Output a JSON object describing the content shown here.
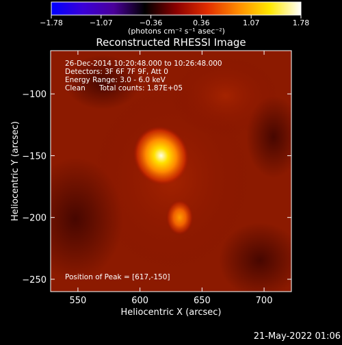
{
  "colorbar": {
    "ticks": [
      "-1.78",
      "-1.07",
      "-0.36",
      "0.36",
      "1.07",
      "1.78"
    ],
    "unit_label": "(photons cm⁻² s⁻¹ asec⁻²)",
    "stops": [
      "#0000ff",
      "#3a00d8",
      "#4a009a",
      "#000000",
      "#8a0000",
      "#e12d00",
      "#ff8c00",
      "#ffe800",
      "#ffffff"
    ]
  },
  "info": {
    "time_range": "26-Dec-2014 10:20:48.000 to 10:26:48.000",
    "detectors": "Detectors: 3F 6F 7F 9F, Att 0",
    "energy": "Energy Range: 3.0 - 6.0 keV",
    "algorithm": "Clean",
    "counts": "Total counts: 1.87E+05",
    "peak": "Position of Peak = [617,-150]"
  },
  "footer_date": "21-May-2022 01:06",
  "chart_data": {
    "type": "heatmap",
    "title": "Reconstructed RHESSI Image",
    "xlabel": "Heliocentric X (arcsec)",
    "ylabel": "Heliocentric Y (arcsec)",
    "xlim": [
      528,
      722
    ],
    "ylim": [
      -260,
      -65
    ],
    "x_ticks": [
      550,
      600,
      650,
      700
    ],
    "y_ticks": [
      -100,
      -150,
      -200,
      -250
    ],
    "colorscale_range": [
      -1.78,
      1.78
    ],
    "sources": [
      {
        "x": 617,
        "y": -150,
        "peak": 1.78
      },
      {
        "x": 632,
        "y": -200,
        "peak": 1.0
      }
    ]
  }
}
